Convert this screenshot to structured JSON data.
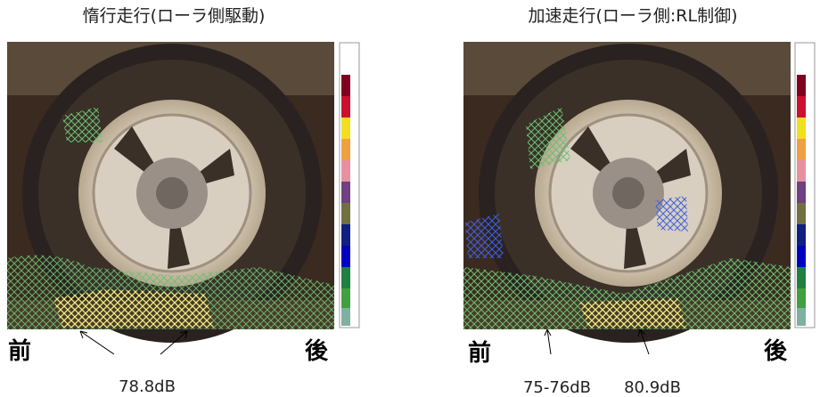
{
  "panels": [
    {
      "title": "惰行走行(ローラ側駆動)",
      "front": "前",
      "rear": "後",
      "annotations": [
        "78.8dB"
      ]
    },
    {
      "title": "加速走行(ローラ側:RL制御)",
      "front": "前",
      "rear": "後",
      "annotations": [
        "75-76dB",
        "80.9dB"
      ]
    }
  ]
}
